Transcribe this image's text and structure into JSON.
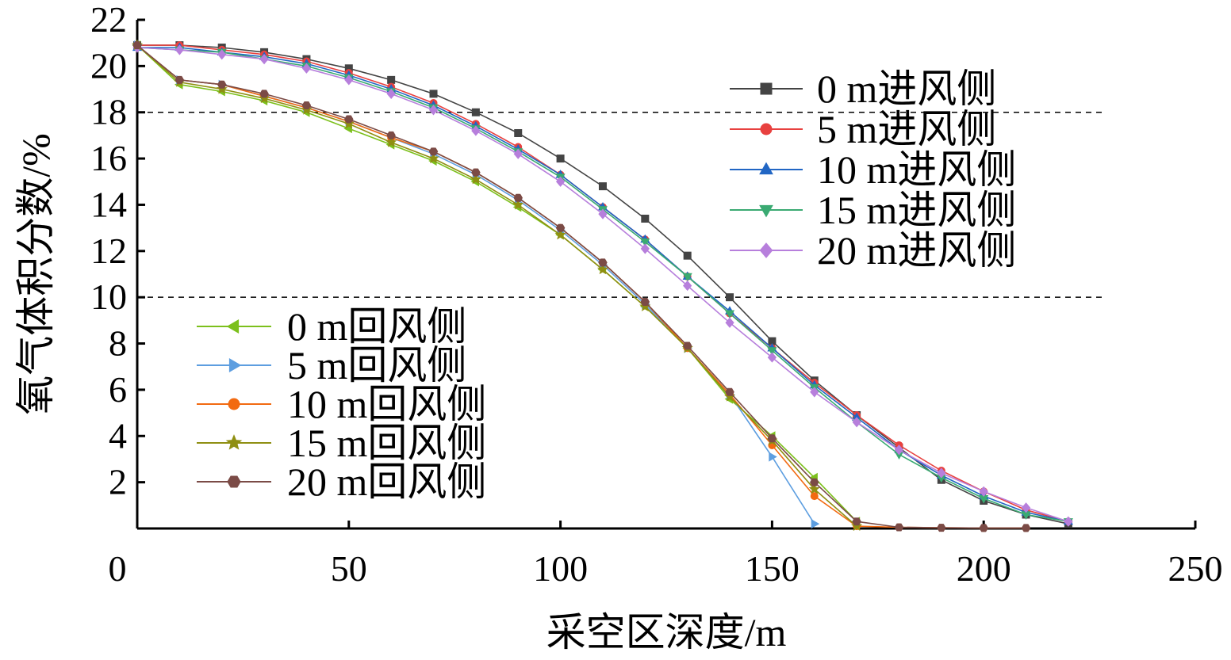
{
  "chart_data": {
    "type": "line",
    "title": "",
    "xlabel": "采空区深度/m",
    "ylabel": "氧气体积分数/%",
    "xlim": [
      0,
      250
    ],
    "ylim": [
      0,
      22
    ],
    "xticks": [
      0,
      50,
      100,
      150,
      200,
      250
    ],
    "yticks": [
      2,
      4,
      6,
      8,
      10,
      12,
      14,
      16,
      18,
      20,
      22
    ],
    "grid": false,
    "reference_lines": [
      18,
      10
    ],
    "legend": [
      {
        "placement": "upper-right",
        "series": [
          0,
          1,
          2,
          3,
          4
        ]
      },
      {
        "placement": "lower-left",
        "series": [
          5,
          6,
          7,
          8,
          9
        ]
      }
    ],
    "series": [
      {
        "name": "0 m进风侧",
        "color": "#444444",
        "marker": "square",
        "x": [
          0,
          10,
          20,
          30,
          40,
          50,
          60,
          70,
          80,
          90,
          100,
          110,
          120,
          130,
          140,
          150,
          160,
          170,
          180,
          190,
          200,
          210,
          220
        ],
        "y": [
          20.9,
          20.9,
          20.8,
          20.6,
          20.3,
          19.9,
          19.4,
          18.8,
          18.0,
          17.1,
          16.0,
          14.8,
          13.4,
          11.8,
          10.0,
          8.1,
          6.4,
          4.9,
          3.5,
          2.1,
          1.2,
          0.6,
          0.2
        ]
      },
      {
        "name": "5 m进风侧",
        "color": "#e8413f",
        "marker": "circle",
        "x": [
          0,
          10,
          20,
          30,
          40,
          50,
          60,
          70,
          80,
          90,
          100,
          110,
          120,
          130,
          140,
          150,
          160,
          170,
          180,
          190,
          200,
          210,
          220
        ],
        "y": [
          20.9,
          20.9,
          20.7,
          20.5,
          20.2,
          19.7,
          19.1,
          18.4,
          17.5,
          16.5,
          15.3,
          13.9,
          12.5,
          10.9,
          9.3,
          7.8,
          6.3,
          4.9,
          3.6,
          2.5,
          1.6,
          0.8,
          0.3
        ]
      },
      {
        "name": "10 m进风侧",
        "color": "#2166c4",
        "marker": "triangle-up",
        "x": [
          0,
          10,
          20,
          30,
          40,
          50,
          60,
          70,
          80,
          90,
          100,
          110,
          120,
          130,
          140,
          150,
          160,
          170,
          180,
          190,
          200,
          210,
          220
        ],
        "y": [
          20.8,
          20.8,
          20.6,
          20.4,
          20.1,
          19.6,
          19.0,
          18.3,
          17.4,
          16.4,
          15.3,
          13.9,
          12.5,
          10.9,
          9.4,
          7.8,
          6.2,
          4.8,
          3.4,
          2.3,
          1.4,
          0.7,
          0.3
        ]
      },
      {
        "name": "15 m进风侧",
        "color": "#3aaa72",
        "marker": "triangle-down",
        "x": [
          0,
          10,
          20,
          30,
          40,
          50,
          60,
          70,
          80,
          90,
          100,
          110,
          120,
          130,
          140,
          150,
          160,
          170,
          180,
          190,
          200,
          210,
          220
        ],
        "y": [
          20.8,
          20.7,
          20.6,
          20.3,
          20.0,
          19.5,
          18.9,
          18.2,
          17.3,
          16.3,
          15.2,
          13.8,
          12.4,
          10.9,
          9.3,
          7.7,
          6.1,
          4.6,
          3.2,
          2.2,
          1.3,
          0.6,
          0.3
        ]
      },
      {
        "name": "20 m进风侧",
        "color": "#b77fdc",
        "marker": "diamond",
        "x": [
          0,
          10,
          20,
          30,
          40,
          50,
          60,
          70,
          80,
          90,
          100,
          110,
          120,
          130,
          140,
          150,
          160,
          170,
          180,
          190,
          200,
          210,
          220
        ],
        "y": [
          20.8,
          20.7,
          20.5,
          20.3,
          19.9,
          19.4,
          18.8,
          18.1,
          17.2,
          16.2,
          15.0,
          13.6,
          12.1,
          10.5,
          8.9,
          7.4,
          5.9,
          4.6,
          3.4,
          2.4,
          1.6,
          0.9,
          0.3
        ]
      },
      {
        "name": "0 m回风侧",
        "color": "#7cc01c",
        "marker": "triangle-left",
        "x": [
          0,
          10,
          20,
          30,
          40,
          50,
          60,
          70,
          80,
          90,
          100,
          110,
          120,
          130,
          140,
          150,
          160,
          170
        ],
        "y": [
          20.9,
          19.2,
          18.9,
          18.5,
          18.0,
          17.3,
          16.6,
          15.9,
          15.0,
          13.9,
          12.7,
          11.2,
          9.6,
          7.8,
          5.6,
          4.0,
          2.2,
          0.3
        ]
      },
      {
        "name": "5 m回风侧",
        "color": "#5d9ee0",
        "marker": "triangle-right",
        "x": [
          0,
          10,
          20,
          30,
          40,
          50,
          60,
          70,
          80,
          90,
          100,
          110,
          120,
          130,
          140,
          150,
          160
        ],
        "y": [
          20.9,
          19.4,
          19.2,
          18.7,
          18.2,
          17.6,
          16.9,
          16.2,
          15.3,
          14.2,
          12.9,
          11.4,
          9.7,
          7.8,
          5.8,
          3.1,
          0.2
        ]
      },
      {
        "name": "10 m回风侧",
        "color": "#f26a11",
        "marker": "circle",
        "x": [
          0,
          10,
          20,
          30,
          40,
          50,
          60,
          70,
          80,
          90,
          100,
          110,
          120,
          130,
          140,
          150,
          160,
          170,
          180,
          190,
          200,
          210
        ],
        "y": [
          20.9,
          19.4,
          19.2,
          18.7,
          18.2,
          17.6,
          16.9,
          16.3,
          15.4,
          14.3,
          13.0,
          11.5,
          9.8,
          7.8,
          5.8,
          3.6,
          1.4,
          0.1,
          0.05,
          0.03,
          0.02,
          0.02
        ]
      },
      {
        "name": "15 m回风侧",
        "color": "#8f8f12",
        "marker": "star",
        "x": [
          0,
          10,
          20,
          30,
          40,
          50,
          60,
          70,
          80,
          90,
          100,
          110,
          120,
          130,
          140,
          150,
          160,
          170
        ],
        "y": [
          20.9,
          19.3,
          19.0,
          18.6,
          18.1,
          17.5,
          16.7,
          16.0,
          15.1,
          14.0,
          12.7,
          11.2,
          9.6,
          7.8,
          5.7,
          3.8,
          1.7,
          0.1
        ]
      },
      {
        "name": "20 m回风侧",
        "color": "#7b4b46",
        "marker": "hexagon",
        "x": [
          0,
          10,
          20,
          30,
          40,
          50,
          60,
          70,
          80,
          90,
          100,
          110,
          120,
          130,
          140,
          150,
          160,
          170,
          180,
          190,
          200,
          210
        ],
        "y": [
          20.9,
          19.4,
          19.2,
          18.8,
          18.3,
          17.7,
          17.0,
          16.3,
          15.4,
          14.3,
          13.0,
          11.5,
          9.8,
          7.9,
          5.9,
          3.9,
          2.0,
          0.3,
          0.05,
          0.03,
          0.02,
          0.02
        ]
      }
    ]
  }
}
